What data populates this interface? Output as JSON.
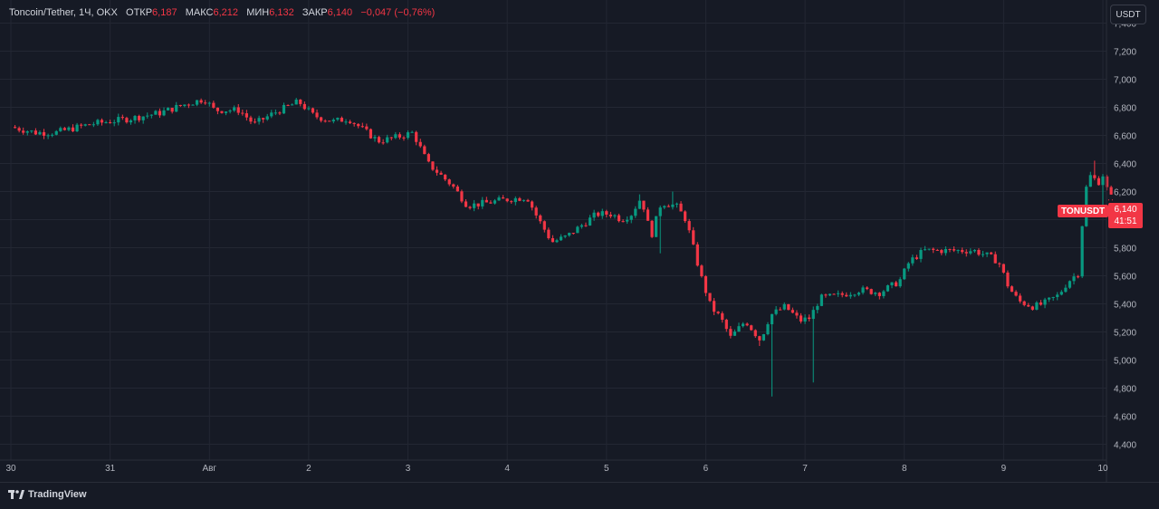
{
  "header": {
    "symbol": "Toncoin/Tether, 1Ч, OKX",
    "open_label": "ОТКР",
    "open_value": "6,187",
    "high_label": "МАКС",
    "high_value": "6,212",
    "low_label": "МИН",
    "low_value": "6,132",
    "close_label": "ЗАКР",
    "close_value": "6,140",
    "change_value": "−0,047 (−0,76%)"
  },
  "currency": "USDT",
  "last_price": {
    "ticker": "TONUSDT",
    "price": "6,140",
    "countdown": "41:51"
  },
  "brand": "TradingView",
  "colors": {
    "up": "#089981",
    "down": "#f23645",
    "background": "#161a25",
    "grid": "#232733"
  },
  "chart_data": {
    "type": "candlestick",
    "interval": "1H",
    "ylim": [
      4.3,
      7.5
    ],
    "y_ticks": [
      {
        "value": 4.4,
        "label": "4,400"
      },
      {
        "value": 4.6,
        "label": "4,600"
      },
      {
        "value": 4.8,
        "label": "4,800"
      },
      {
        "value": 5.0,
        "label": "5,000"
      },
      {
        "value": 5.2,
        "label": "5,200"
      },
      {
        "value": 5.4,
        "label": "5,400"
      },
      {
        "value": 5.6,
        "label": "5,600"
      },
      {
        "value": 5.8,
        "label": "5,800"
      },
      {
        "value": 6.0,
        "label": "6,000"
      },
      {
        "value": 6.2,
        "label": "6,200"
      },
      {
        "value": 6.4,
        "label": "6,400"
      },
      {
        "value": 6.6,
        "label": "6,600"
      },
      {
        "value": 6.8,
        "label": "6,800"
      },
      {
        "value": 7.0,
        "label": "7,000"
      },
      {
        "value": 7.2,
        "label": "7,200"
      },
      {
        "value": 7.4,
        "label": "7,400"
      }
    ],
    "x_ticks": [
      {
        "day": 0,
        "label": "30"
      },
      {
        "day": 1,
        "label": "31"
      },
      {
        "day": 2,
        "label": "Авг"
      },
      {
        "day": 3,
        "label": "2"
      },
      {
        "day": 4,
        "label": "3"
      },
      {
        "day": 5,
        "label": "4"
      },
      {
        "day": 6,
        "label": "5"
      },
      {
        "day": 7,
        "label": "6"
      },
      {
        "day": 8,
        "label": "7"
      },
      {
        "day": 9,
        "label": "8"
      },
      {
        "day": 10,
        "label": "9"
      },
      {
        "day": 11,
        "label": "10"
      }
    ],
    "x_range": [
      0,
      11
    ],
    "anchors": [
      [
        0.0,
        6.66
      ],
      [
        0.25,
        6.62
      ],
      [
        0.45,
        6.62
      ],
      [
        0.8,
        6.68
      ],
      [
        1.2,
        6.72
      ],
      [
        1.5,
        6.76
      ],
      [
        1.75,
        6.82
      ],
      [
        1.95,
        6.86
      ],
      [
        2.05,
        6.78
      ],
      [
        2.3,
        6.78
      ],
      [
        2.45,
        6.68
      ],
      [
        2.65,
        6.76
      ],
      [
        2.9,
        6.84
      ],
      [
        3.05,
        6.74
      ],
      [
        3.25,
        6.7
      ],
      [
        3.4,
        6.72
      ],
      [
        3.55,
        6.64
      ],
      [
        3.7,
        6.56
      ],
      [
        3.85,
        6.58
      ],
      [
        4.05,
        6.62
      ],
      [
        4.2,
        6.4
      ],
      [
        4.45,
        6.24
      ],
      [
        4.6,
        6.1
      ],
      [
        4.8,
        6.12
      ],
      [
        4.95,
        6.14
      ],
      [
        5.2,
        6.16
      ],
      [
        5.3,
        6.02
      ],
      [
        5.45,
        5.84
      ],
      [
        5.6,
        5.88
      ],
      [
        5.75,
        5.96
      ],
      [
        5.9,
        6.04
      ],
      [
        6.05,
        6.04
      ],
      [
        6.15,
        6.0
      ],
      [
        6.25,
        6.04
      ],
      [
        6.35,
        6.16
      ],
      [
        6.45,
        5.88
      ],
      [
        6.55,
        6.12
      ],
      [
        6.7,
        6.1
      ],
      [
        6.8,
        6.0
      ],
      [
        6.95,
        5.6
      ],
      [
        7.05,
        5.38
      ],
      [
        7.15,
        5.3
      ],
      [
        7.25,
        5.16
      ],
      [
        7.4,
        5.28
      ],
      [
        7.55,
        5.14
      ],
      [
        7.65,
        5.32
      ],
      [
        7.8,
        5.38
      ],
      [
        7.95,
        5.28
      ],
      [
        8.05,
        5.3
      ],
      [
        8.15,
        5.44
      ],
      [
        8.35,
        5.46
      ],
      [
        8.55,
        5.5
      ],
      [
        8.75,
        5.48
      ],
      [
        8.95,
        5.56
      ],
      [
        9.05,
        5.7
      ],
      [
        9.2,
        5.78
      ],
      [
        9.4,
        5.78
      ],
      [
        9.55,
        5.78
      ],
      [
        9.7,
        5.78
      ],
      [
        9.85,
        5.74
      ],
      [
        9.95,
        5.7
      ],
      [
        10.05,
        5.52
      ],
      [
        10.15,
        5.42
      ],
      [
        10.3,
        5.38
      ],
      [
        10.4,
        5.4
      ],
      [
        10.55,
        5.46
      ],
      [
        10.65,
        5.56
      ],
      [
        10.75,
        5.62
      ],
      [
        10.82,
        6.2
      ],
      [
        10.88,
        6.32
      ],
      [
        10.95,
        6.26
      ],
      [
        11.0,
        6.32
      ],
      [
        11.05,
        6.2
      ],
      [
        11.1,
        6.14
      ]
    ],
    "spikes": [
      {
        "x": 7.65,
        "low": 4.74
      },
      {
        "x": 7.55,
        "low": 5.1
      },
      {
        "x": 8.1,
        "low": 4.84
      },
      {
        "x": 6.55,
        "low": 5.76
      },
      {
        "x": 6.65,
        "high": 6.2
      },
      {
        "x": 6.35,
        "high": 6.18
      },
      {
        "x": 10.9,
        "high": 6.42
      },
      {
        "x": 11.0,
        "low": 6.06
      }
    ]
  }
}
